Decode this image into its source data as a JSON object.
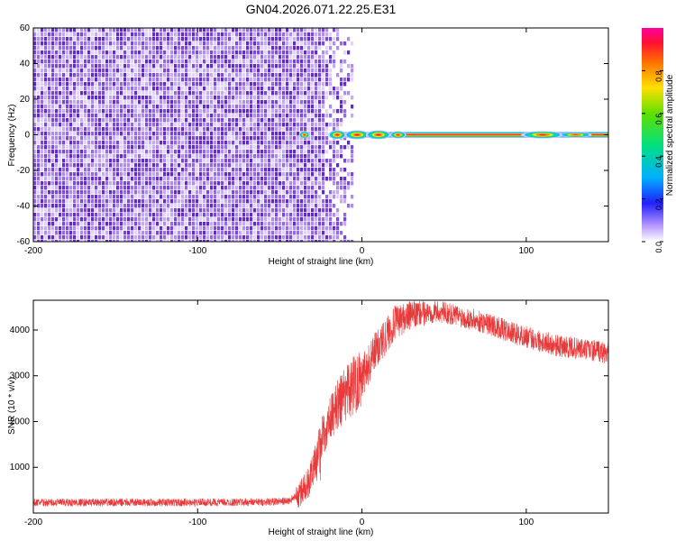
{
  "title": "GN04.2026.071.22.25.E31",
  "chart_data": [
    {
      "type": "heatmap",
      "title": "GN04.2026.071.22.25.E31",
      "xlabel": "Height of straight line (km)",
      "ylabel": "Frequency (Hz)",
      "xlim": [
        -200,
        150
      ],
      "ylim": [
        -60,
        60
      ],
      "xticks": [
        -200,
        -100,
        0,
        100
      ],
      "yticks": [
        -60,
        -40,
        -20,
        0,
        20,
        40,
        60
      ],
      "noise_region_x": [
        -200,
        -5
      ],
      "signal_line": {
        "frequency": 0,
        "x_start": -40,
        "x_end": 150
      },
      "colorbar": {
        "label": "Normalized spectral amplitude",
        "range": [
          0,
          1
        ],
        "ticks": [
          0.0,
          0.2,
          0.4,
          0.6,
          0.8
        ]
      }
    },
    {
      "type": "line",
      "xlabel": "Height of straight line (km)",
      "ylabel": "SNR (10 * v/v)",
      "xlim": [
        -200,
        150
      ],
      "ylim": [
        0,
        4650
      ],
      "xticks": [
        -200,
        -100,
        0,
        100
      ],
      "yticks": [
        1000,
        2000,
        3000,
        4000
      ],
      "color": "#e83a3a",
      "series": [
        {
          "name": "SNR",
          "x": [
            -200,
            -150,
            -100,
            -60,
            -45,
            -38,
            -32,
            -28,
            -24,
            -20,
            -16,
            -12,
            -8,
            -4,
            0,
            5,
            10,
            15,
            20,
            25,
            30,
            35,
            40,
            45,
            50,
            60,
            70,
            80,
            90,
            100,
            110,
            120,
            130,
            140,
            150
          ],
          "y": [
            230,
            230,
            230,
            240,
            260,
            400,
            700,
            1200,
            1700,
            2000,
            2300,
            2500,
            2700,
            2850,
            3050,
            3300,
            3650,
            3900,
            4150,
            4250,
            4320,
            4350,
            4380,
            4400,
            4380,
            4300,
            4200,
            4100,
            3950,
            3850,
            3750,
            3650,
            3600,
            3550,
            3500
          ]
        }
      ]
    }
  ],
  "heatmap_colors": {
    "noise": [
      "#c8a8ff",
      "#b388ff",
      "#9a62f5",
      "#8040ee",
      "#6a20e8",
      "#e3d4ff"
    ],
    "ridge": [
      "#d9c4ff",
      "#00c0ff",
      "#00e676",
      "#ffe000",
      "#ff8000",
      "#ff2050"
    ]
  }
}
